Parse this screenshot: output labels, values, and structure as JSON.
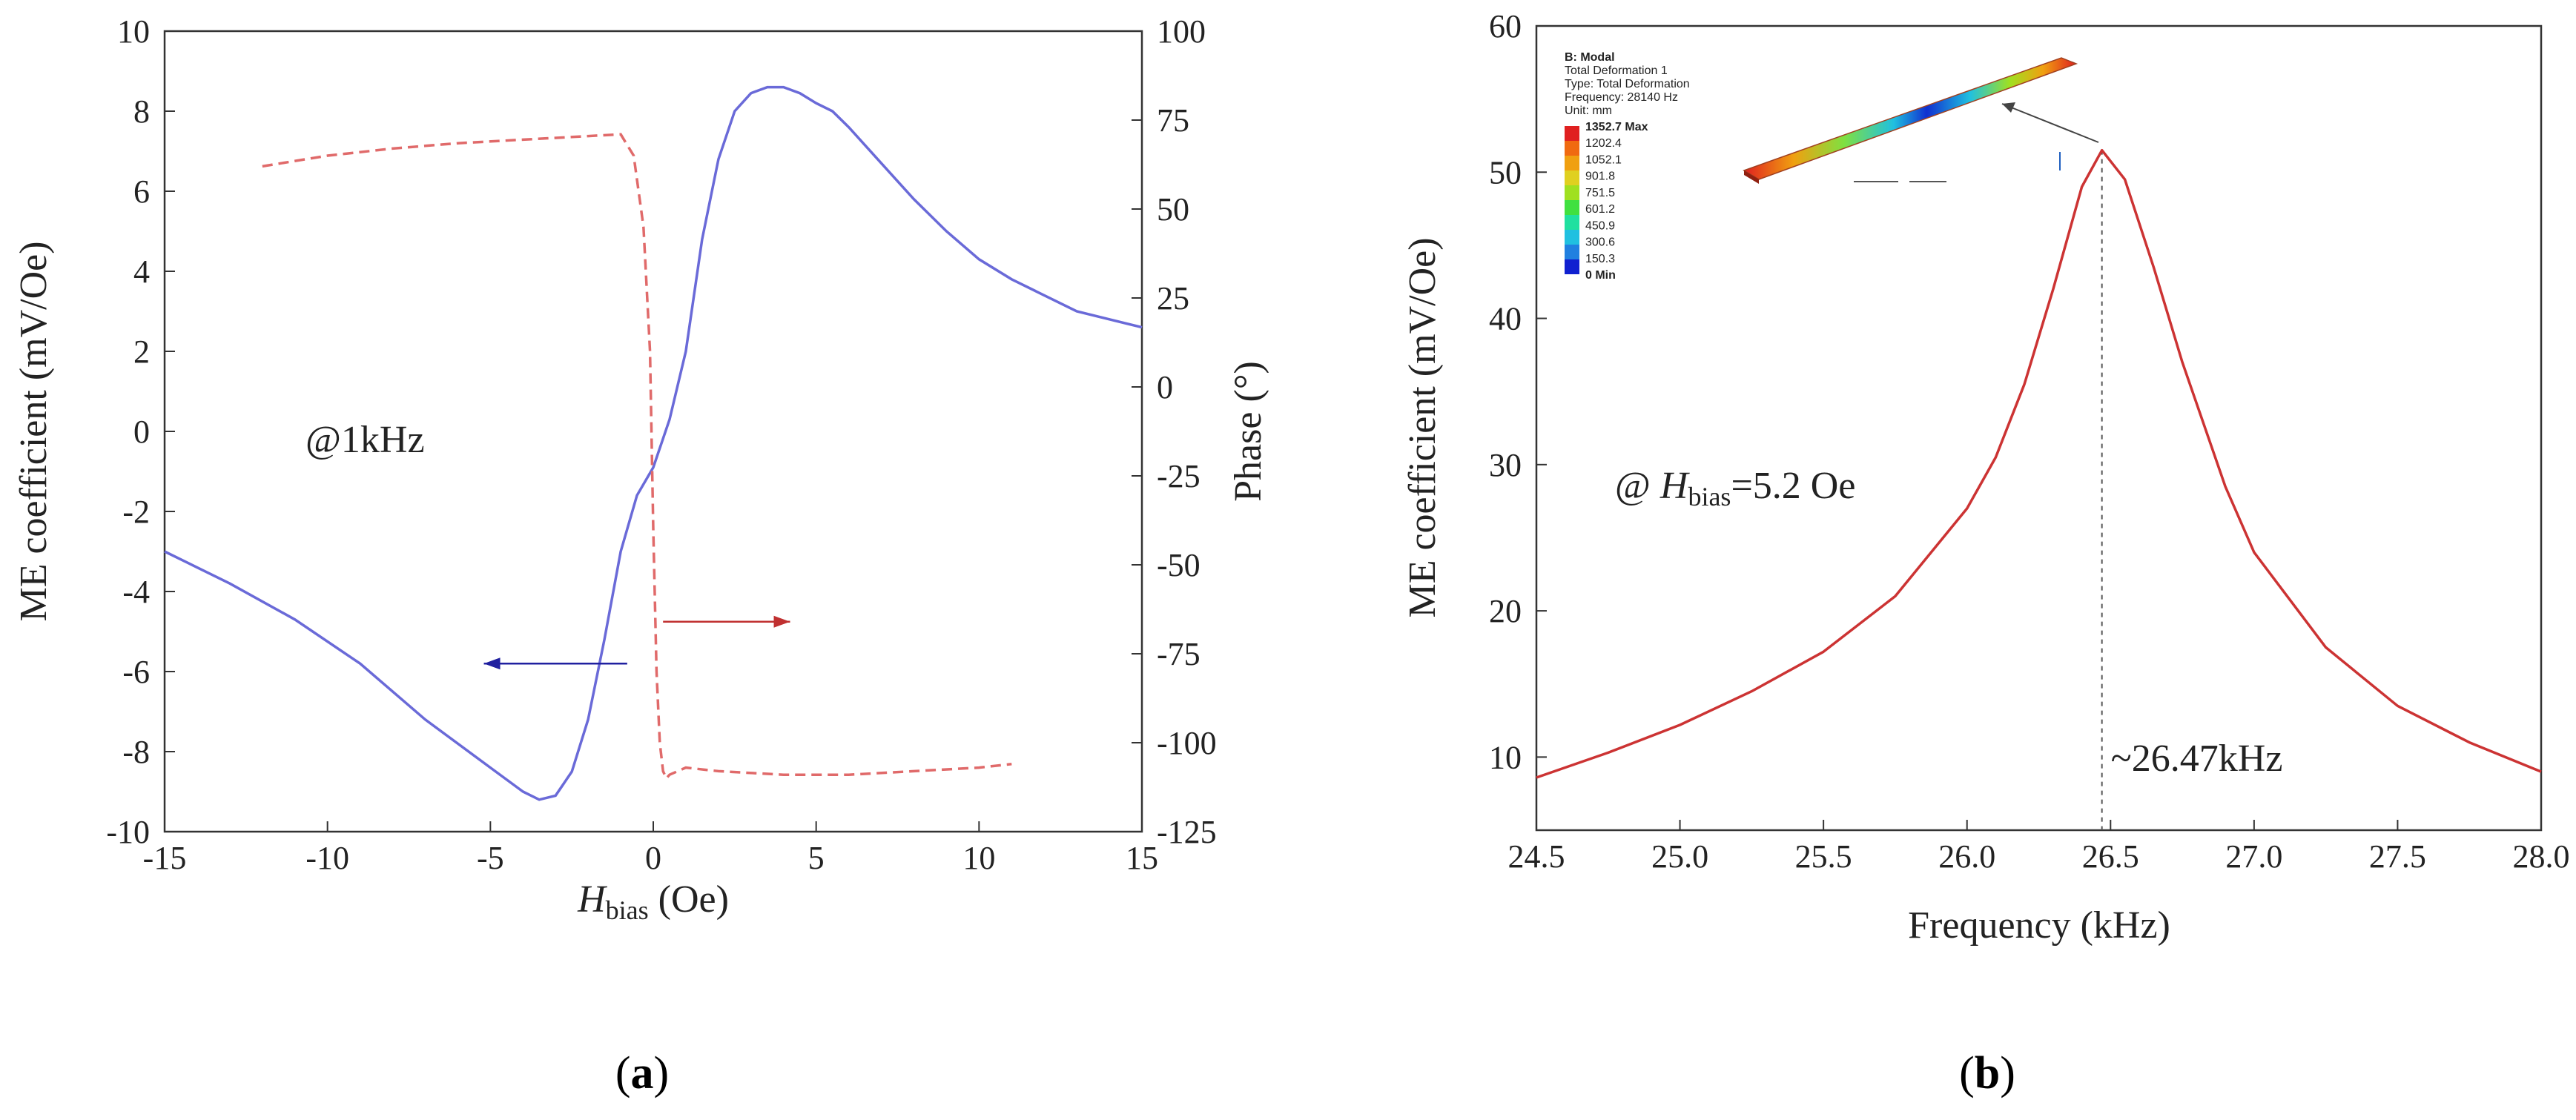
{
  "chart_data": [
    {
      "id": "a",
      "panel_label": "a",
      "type": "line",
      "xlabel_main": "H",
      "xlabel_sub": "bias",
      "xlabel_unit": " (Oe)",
      "ylabel_left": "ME coefficient (mV/Oe)",
      "ylabel_right": "Phase (°)",
      "xlim": [
        -15,
        15
      ],
      "ylim_left": [
        -10,
        10
      ],
      "ylim_right": [
        -125,
        100
      ],
      "x_ticks": [
        "-15",
        "-10",
        "-5",
        "0",
        "5",
        "10",
        "15"
      ],
      "y_left_ticks": [
        "-10",
        "-8",
        "-6",
        "-4",
        "-2",
        "0",
        "2",
        "4",
        "6",
        "8",
        "10"
      ],
      "y_right_ticks": [
        "-125",
        "-100",
        "-75",
        "-50",
        "-25",
        "0",
        "25",
        "50",
        "75",
        "100"
      ],
      "annotation": "@1kHz",
      "series": [
        {
          "name": "ME coefficient",
          "axis": "left",
          "color": "#6a6ad8",
          "style": "solid",
          "x": [
            -15,
            -13,
            -11,
            -9,
            -7,
            -5,
            -4,
            -3.5,
            -3,
            -2.5,
            -2,
            -1.5,
            -1,
            -0.5,
            0,
            0.5,
            1,
            1.5,
            2,
            2.5,
            3,
            3.5,
            4,
            4.5,
            5,
            5.5,
            6,
            7,
            8,
            9,
            10,
            11,
            12,
            13,
            14,
            15
          ],
          "y": [
            -3.0,
            -3.8,
            -4.7,
            -5.8,
            -7.2,
            -8.4,
            -9.0,
            -9.2,
            -9.1,
            -8.5,
            -7.2,
            -5.2,
            -3.0,
            -1.6,
            -0.9,
            0.3,
            2.0,
            4.8,
            6.8,
            8.0,
            8.45,
            8.6,
            8.6,
            8.45,
            8.2,
            8.0,
            7.6,
            6.7,
            5.8,
            5.0,
            4.3,
            3.8,
            3.4,
            3.0,
            2.8,
            2.6
          ]
        },
        {
          "name": "Phase",
          "axis": "right",
          "color": "#e06a6a",
          "style": "dashed",
          "x": [
            -12,
            -10,
            -8,
            -6,
            -4,
            -2,
            -1,
            -0.6,
            -0.3,
            -0.1,
            0,
            0.1,
            0.2,
            0.3,
            0.4,
            0.5,
            1,
            2,
            4,
            6,
            8,
            10,
            11
          ],
          "y": [
            62,
            65,
            67,
            68.5,
            69.5,
            70.5,
            71,
            65,
            45,
            10,
            -40,
            -80,
            -100,
            -108,
            -110,
            -109,
            -107,
            -108,
            -109,
            -109,
            -108,
            -107,
            -106
          ]
        }
      ],
      "arrows": [
        {
          "from_x": -0.8,
          "to_x": -5.2,
          "y": -5.8,
          "axis": "left",
          "color": "#2020a0"
        },
        {
          "from_x": 0.3,
          "to_x": 4.2,
          "y": -66,
          "axis": "right",
          "color": "#c03030"
        }
      ]
    },
    {
      "id": "b",
      "panel_label": "b",
      "type": "line",
      "xlabel": "Frequency (kHz)",
      "ylabel": "ME coefficient (mV/Oe)",
      "xlim": [
        24.5,
        28.0
      ],
      "ylim": [
        5,
        60
      ],
      "x_ticks": [
        "24.5",
        "25.0",
        "25.5",
        "26.0",
        "26.5",
        "27.0",
        "27.5",
        "28.0"
      ],
      "y_ticks": [
        "10",
        "20",
        "30",
        "40",
        "50",
        "60"
      ],
      "annotation_prefix": "@ ",
      "annotation_h": "H",
      "annotation_sub": "bias",
      "annotation_suffix": "=5.2 Oe",
      "peak_label": "~26.47kHz",
      "peak_x": 26.47,
      "series": [
        {
          "name": "ME coefficient",
          "color": "#cc3333",
          "x": [
            24.5,
            24.75,
            25.0,
            25.25,
            25.5,
            25.75,
            26.0,
            26.1,
            26.2,
            26.3,
            26.4,
            26.47,
            26.55,
            26.65,
            26.75,
            26.9,
            27.0,
            27.25,
            27.5,
            27.75,
            28.0
          ],
          "y": [
            8.6,
            10.3,
            12.2,
            14.5,
            17.2,
            21.0,
            27.0,
            30.5,
            35.5,
            42.0,
            49.0,
            51.5,
            49.5,
            43.5,
            37.0,
            28.5,
            24.0,
            17.5,
            13.5,
            11.0,
            9.0
          ]
        }
      ],
      "inset": {
        "title": "B: Modal",
        "lines": [
          "Total Deformation 1",
          "Type: Total Deformation",
          "Frequency: 28140 Hz",
          "Unit: mm"
        ],
        "legend_max": "1352.7 Max",
        "legend_values": [
          "1202.4",
          "1052.1",
          "901.8",
          "751.5",
          "601.2",
          "450.9",
          "300.6",
          "150.3"
        ],
        "legend_min": "0 Min",
        "legend_colors": [
          "#e02020",
          "#f06a10",
          "#f0a010",
          "#e0d020",
          "#a0e020",
          "#40e040",
          "#20e0a0",
          "#20c0e0",
          "#2080e0",
          "#1020d0"
        ]
      }
    }
  ]
}
